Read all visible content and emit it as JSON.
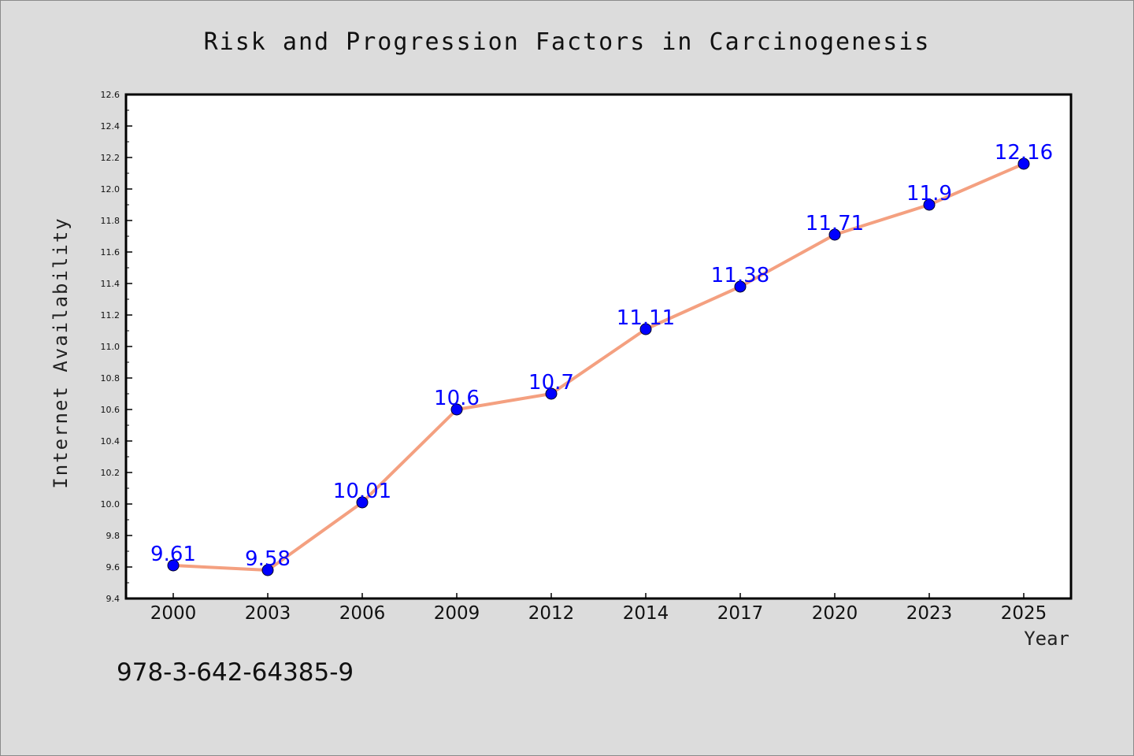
{
  "chart_data": {
    "type": "line",
    "title": "Risk and Progression Factors in Carcinogenesis",
    "xlabel": "Year",
    "ylabel": "Internet Availability",
    "categories": [
      "2000",
      "2003",
      "2006",
      "2009",
      "2012",
      "2014",
      "2017",
      "2020",
      "2023",
      "2025"
    ],
    "values": [
      9.61,
      9.58,
      10.01,
      10.6,
      10.7,
      11.11,
      11.38,
      11.71,
      11.9,
      12.16
    ],
    "data_labels": [
      "9.61",
      "9.58",
      "10.01",
      "10.6",
      "10.7",
      "11.11",
      "11.38",
      "11.71",
      "11.9",
      "12.16"
    ],
    "ylim": [
      9.4,
      12.6
    ],
    "yticks": [
      "9.4",
      "9.6",
      "9.8",
      "10.0",
      "10.2",
      "10.4",
      "10.6",
      "10.8",
      "11.0",
      "11.2",
      "11.4",
      "11.6",
      "11.8",
      "12.0",
      "12.2",
      "12.4",
      "12.6"
    ],
    "grid": false,
    "legend": "none",
    "line_color": "#f4a080",
    "marker_color": "#0000ff",
    "label_color": "#0000ff"
  },
  "annotation": "978-3-642-64385-9"
}
